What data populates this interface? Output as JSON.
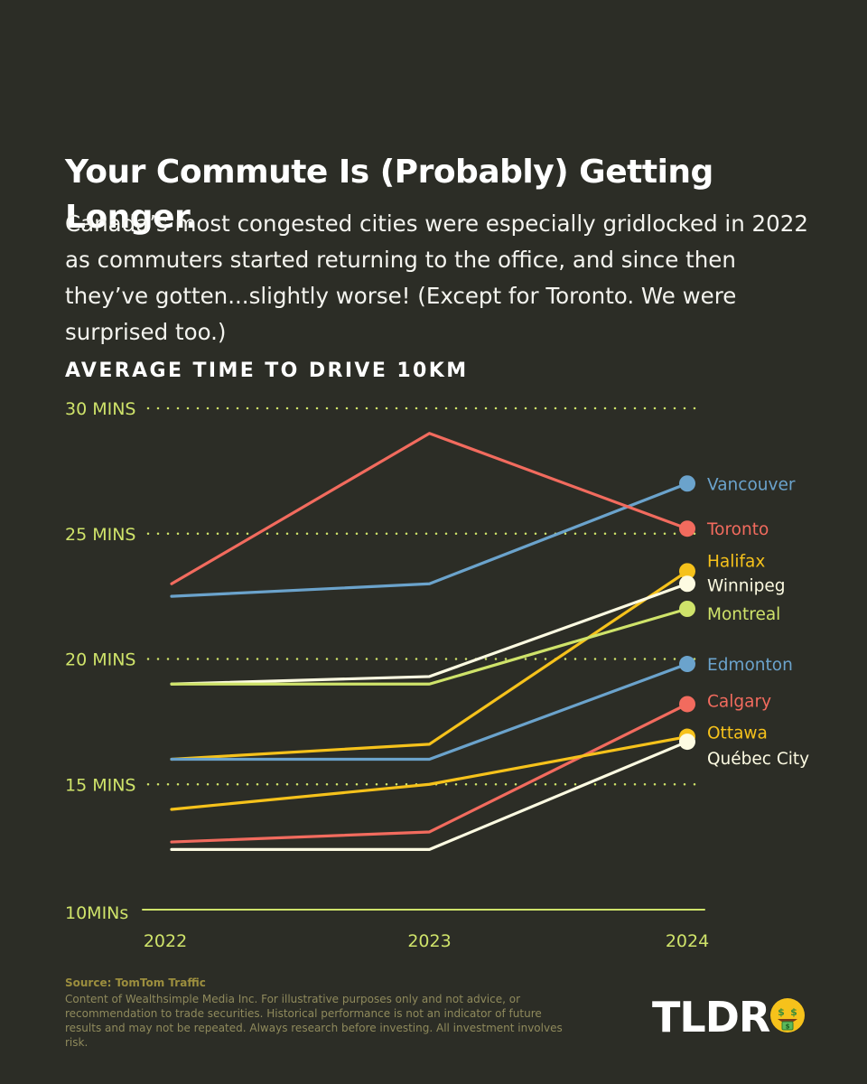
{
  "header": {
    "title": "Your Commute Is (Probably) Getting Longer.",
    "subtitle": "Canada’s most congested cities were especially gridlocked in 2022 as commuters started returning to the office, and since then they’ve gotten...slightly worse! (Except for Toronto. We were surprised too.)"
  },
  "chart_data": {
    "type": "line",
    "title": "AVERAGE TIME TO DRIVE 10KM",
    "x": [
      "2022",
      "2023",
      "2024"
    ],
    "ylim": [
      10,
      30
    ],
    "yticks": [
      {
        "value": 30,
        "label": "30 MINS"
      },
      {
        "value": 25,
        "label": "25 MINS"
      },
      {
        "value": 20,
        "label": "20 MINS"
      },
      {
        "value": 15,
        "label": "15 MINS"
      },
      {
        "value": 10,
        "label": "10MINs"
      }
    ],
    "grid": "dotted-horizontal",
    "legend": "direct labels at line ends",
    "series": [
      {
        "name": "Vancouver",
        "color": "#6ba3cc",
        "values": [
          22.5,
          23.0,
          27.0
        ]
      },
      {
        "name": "Toronto",
        "color": "#f26b5e",
        "values": [
          23.0,
          29.0,
          25.2
        ]
      },
      {
        "name": "Halifax",
        "color": "#f6c21b",
        "values": [
          16.0,
          16.6,
          23.5
        ]
      },
      {
        "name": "Winnipeg",
        "color": "#fdfbe2",
        "values": [
          19.0,
          19.3,
          23.0
        ]
      },
      {
        "name": "Montreal",
        "color": "#cfe36a",
        "values": [
          19.0,
          19.0,
          22.0
        ]
      },
      {
        "name": "Edmonton",
        "color": "#6ba3cc",
        "values": [
          16.0,
          16.0,
          19.8
        ]
      },
      {
        "name": "Calgary",
        "color": "#f26b5e",
        "values": [
          12.7,
          13.1,
          18.2
        ]
      },
      {
        "name": "Ottawa",
        "color": "#f6c21b",
        "values": [
          14.0,
          15.0,
          16.9
        ]
      },
      {
        "name": "Québec City",
        "color": "#fdfbe2",
        "values": [
          12.4,
          12.4,
          16.7
        ]
      }
    ]
  },
  "footer": {
    "source": "Source: TomTom Traffic",
    "disclaimer": "Content of Wealthsimple Media Inc. For illustrative purposes only and not advice, or recommendation to trade securities. Historical performance is not an indicator of future results and may not be repeated. Always research before investing. All investment involves risk.",
    "logo_text": "TLDR"
  },
  "colors": {
    "background": "#2c2d26",
    "axis": "#cfe36a",
    "text": "#ffffff",
    "footer_text": "#8f8a5c"
  }
}
